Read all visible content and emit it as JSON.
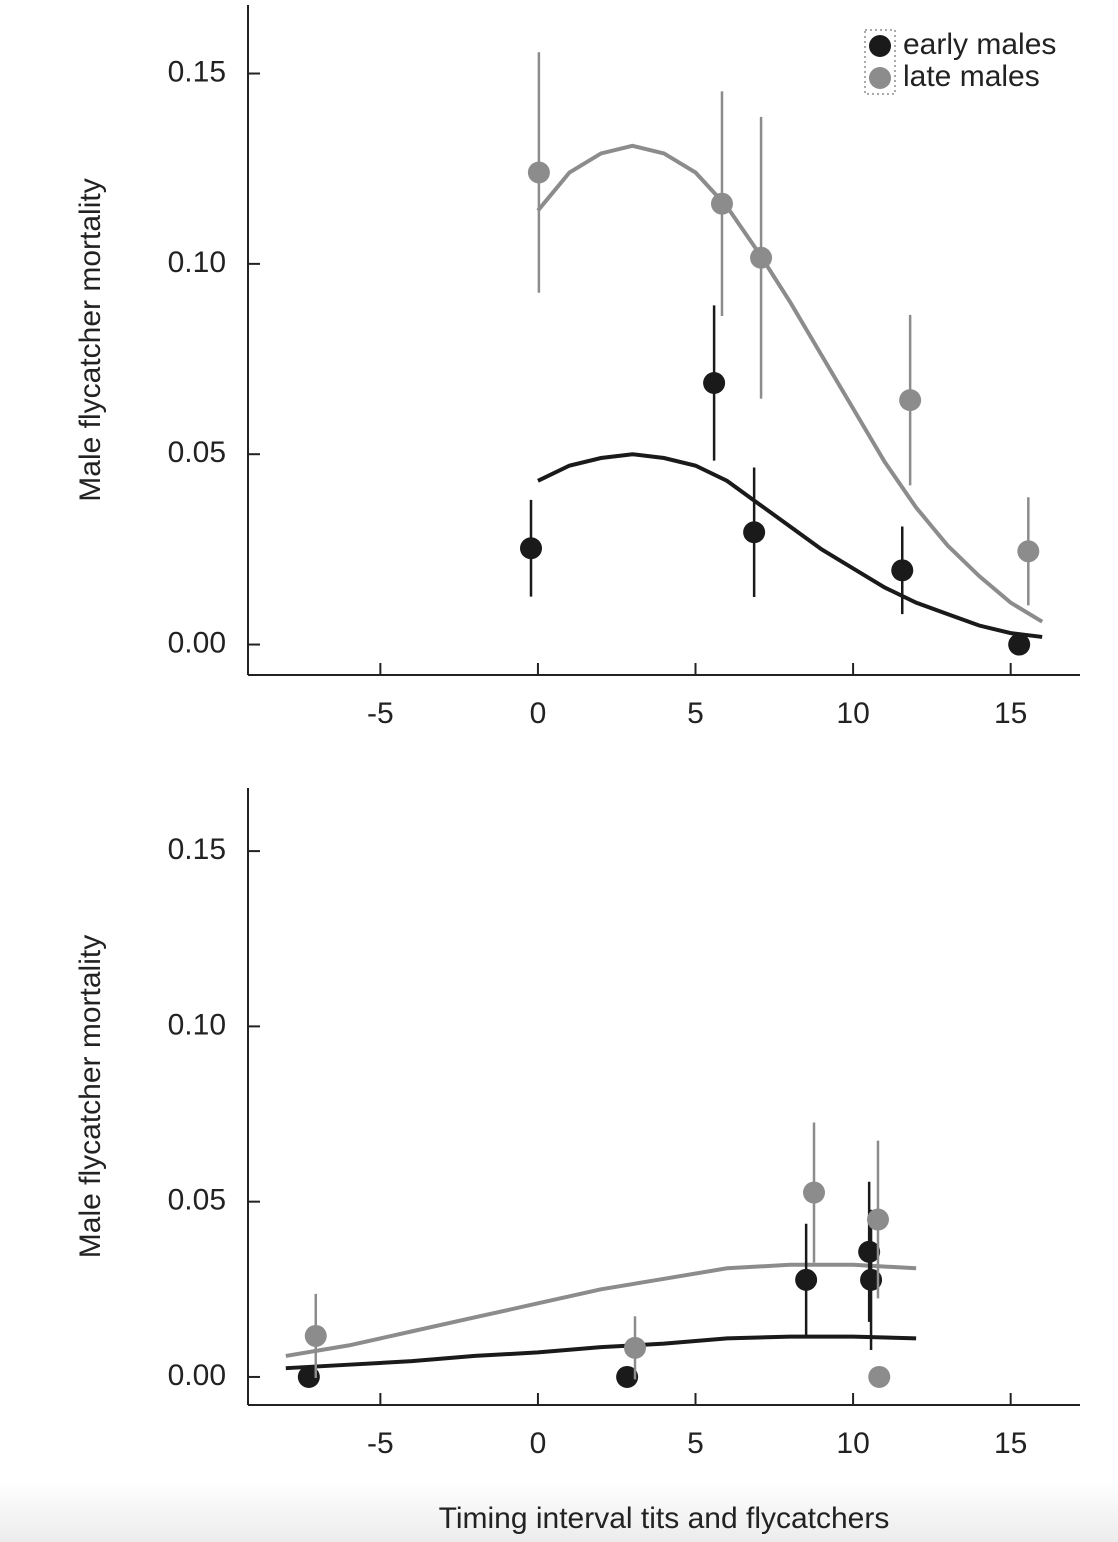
{
  "chart_data": [
    {
      "type": "scatter",
      "ylabel": "Male flycatcher mortality",
      "xlim": [
        -9.2,
        17.2
      ],
      "xticks": [
        -5,
        0,
        5,
        10,
        15
      ],
      "ylim": [
        -0.008,
        0.168
      ],
      "yticks": [
        {
          "value": 0,
          "label": "0.00"
        },
        0.05,
        {
          "value": 0.1,
          "label": "0.10"
        },
        0.15
      ],
      "legend": "upper right",
      "series": [
        {
          "name": "early males",
          "color": "#1a1a1a",
          "x": [
            -0.22,
            5.59,
            6.86,
            11.56,
            15.27
          ],
          "values": [
            0.0253,
            0.0687,
            0.0295,
            0.0195,
            0.0
          ],
          "errors": [
            0.0127,
            0.0204,
            0.017,
            0.0115,
            0
          ]
        },
        {
          "name": "late males",
          "color": "#8c8c8c",
          "x": [
            0.03,
            5.84,
            7.08,
            11.81,
            15.56
          ],
          "values": [
            0.124,
            0.1158,
            0.1016,
            0.0642,
            0.0245
          ],
          "errors": [
            0.0316,
            0.0295,
            0.037,
            0.0224,
            0.0142
          ]
        }
      ],
      "fits": [
        {
          "color": "#8c8c8c",
          "x": [
            0,
            1,
            2,
            3,
            4,
            5,
            6,
            7,
            8,
            9,
            10,
            11,
            12,
            13,
            14,
            15,
            16
          ],
          "values": [
            0.114,
            0.124,
            0.129,
            0.131,
            0.129,
            0.124,
            0.115,
            0.103,
            0.09,
            0.076,
            0.062,
            0.048,
            0.036,
            0.026,
            0.018,
            0.011,
            0.006
          ]
        },
        {
          "color": "#1a1a1a",
          "x": [
            0,
            1,
            2,
            3,
            4,
            5,
            6,
            7,
            8,
            9,
            10,
            11,
            12,
            13,
            14,
            15,
            16
          ],
          "values": [
            0.043,
            0.047,
            0.049,
            0.05,
            0.049,
            0.047,
            0.043,
            0.037,
            0.031,
            0.025,
            0.02,
            0.015,
            0.011,
            0.008,
            0.005,
            0.003,
            0.002
          ]
        }
      ]
    },
    {
      "type": "scatter",
      "ylabel": "Male flycatcher mortality",
      "xlabel": "Timing interval tits and flycatchers",
      "xlim": [
        -9.2,
        17.2
      ],
      "xticks": [
        -5,
        0,
        5,
        10,
        15
      ],
      "ylim": [
        -0.008,
        0.168
      ],
      "yticks": [
        {
          "value": 0,
          "label": "0.00"
        },
        0.05,
        {
          "value": 0.1,
          "label": "0.10"
        },
        0.15
      ],
      "series": [
        {
          "color": "#1a1a1a",
          "x": [
            -7.27,
            2.83,
            8.51,
            10.51,
            10.57
          ],
          "values": [
            0.0,
            0.0,
            0.0277,
            0.0357,
            0.0277
          ],
          "errors": [
            0,
            0,
            0.016,
            0.02,
            0.02
          ]
        },
        {
          "color": "#8c8c8c",
          "x": [
            -7.05,
            3.08,
            8.76,
            10.79,
            10.83
          ],
          "values": [
            0.0117,
            0.0083,
            0.0526,
            0.0449,
            0.0
          ],
          "errors": [
            0.012,
            0.009,
            0.02,
            0.0225,
            0
          ]
        }
      ],
      "fits": [
        {
          "color": "#8c8c8c",
          "x": [
            -8,
            -6,
            -4,
            -2,
            0,
            2,
            4,
            6,
            8,
            10,
            12
          ],
          "values": [
            0.006,
            0.009,
            0.013,
            0.017,
            0.021,
            0.025,
            0.028,
            0.031,
            0.032,
            0.032,
            0.031
          ]
        },
        {
          "color": "#1a1a1a",
          "x": [
            -8,
            -6,
            -4,
            -2,
            0,
            2,
            4,
            6,
            8,
            10,
            12
          ],
          "values": [
            0.0025,
            0.0035,
            0.0045,
            0.006,
            0.007,
            0.0085,
            0.0095,
            0.011,
            0.0115,
            0.0115,
            0.011
          ]
        }
      ]
    }
  ]
}
